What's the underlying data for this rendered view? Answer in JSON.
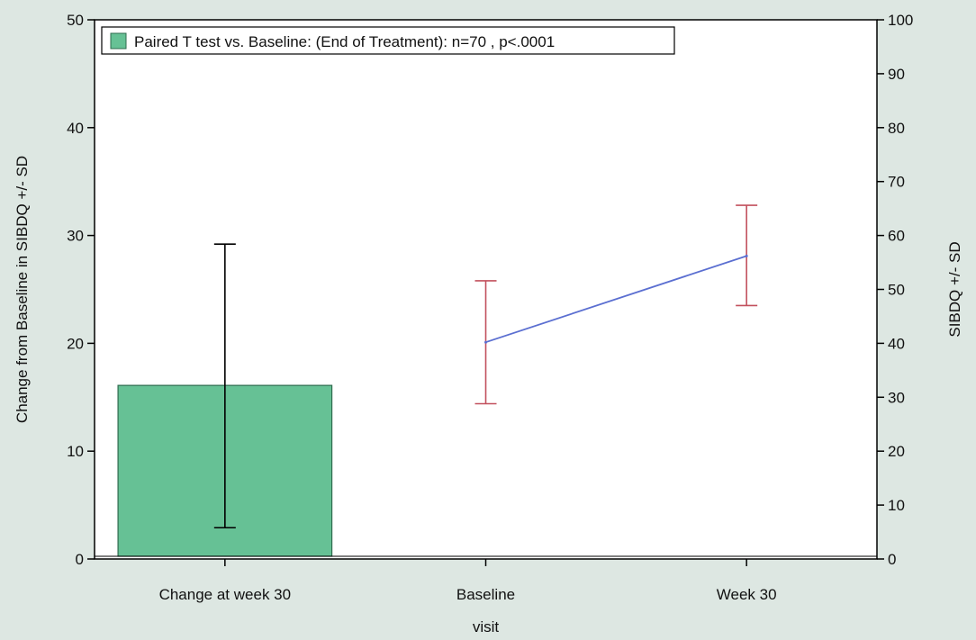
{
  "chart_data": {
    "type": "bar",
    "xlabel": "visit",
    "categories": [
      "Change at week 30",
      "Baseline",
      "Week 30"
    ],
    "y_left": {
      "label": "Change from Baseline in SIBDQ +/- SD",
      "range": [
        0,
        50
      ],
      "ticks": [
        0,
        10,
        20,
        30,
        40,
        50
      ]
    },
    "y_right": {
      "label": "SIBDQ +/- SD",
      "range": [
        0,
        100
      ],
      "ticks": [
        0,
        10,
        20,
        30,
        40,
        50,
        60,
        70,
        80,
        90,
        100
      ]
    },
    "bar_series": {
      "name": "Paired T test vs. Baseline: (End of Treatment): n=70 , p<.0001",
      "axis": "left",
      "category": "Change at week 30",
      "value": 16.1,
      "error_low": 2.9,
      "error_high": 29.2,
      "color": "#66c195"
    },
    "line_series": {
      "axis": "right",
      "categories": [
        "Baseline",
        "Week 30"
      ],
      "values": [
        40.2,
        56.2
      ],
      "error_low": [
        28.8,
        47.0
      ],
      "error_high": [
        51.6,
        65.6
      ],
      "line_color": "#5b6fd1",
      "error_color": "#c2505d"
    },
    "legend_position": "top-left",
    "grid": false
  }
}
